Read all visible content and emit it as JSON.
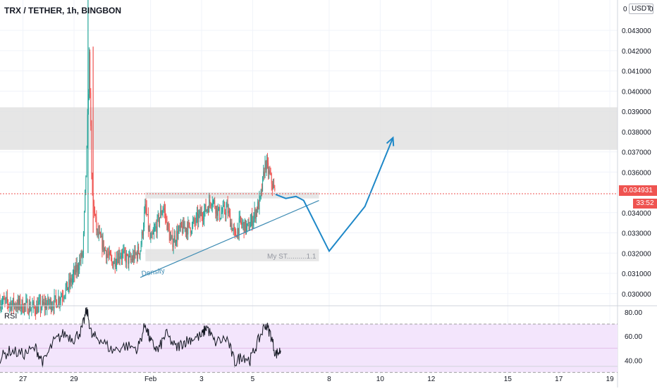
{
  "header": {
    "title": "TRX / TETHER, 1h, BINGBON"
  },
  "price_axis": {
    "currency": "USDT",
    "currency_prefix": "0",
    "currency_suffix": "0",
    "last_price": "0.034931",
    "countdown": "33:52"
  },
  "rsi": {
    "label": "RSI"
  },
  "colors": {
    "up": "#26a69a",
    "down": "#ef5350",
    "zone": "#e0e0e0",
    "projection": "#1e88c8",
    "trendline": "#3d8bb3",
    "rsi_line": "#131722",
    "rsi_band": "#f3e5fc",
    "rsi_band_border": "#9e9e9e",
    "price_line": "#ef5350"
  },
  "chart_data": {
    "type": "candlestick",
    "title": "TRX / TETHER, 1h, BINGBON",
    "ylim": [
      0.0294,
      0.0445
    ],
    "y_ticks": [
      "0.043000",
      "0.042000",
      "0.041000",
      "0.040000",
      "0.039000",
      "0.038000",
      "0.037000",
      "0.036000",
      "0.034000",
      "0.033000",
      "0.032000",
      "0.031000",
      "0.030000"
    ],
    "y_tick_values": [
      0.043,
      0.042,
      0.041,
      0.04,
      0.039,
      0.038,
      0.037,
      0.036,
      0.034,
      0.033,
      0.032,
      0.031,
      0.03
    ],
    "x_ticks": [
      "27",
      "29",
      "Feb",
      "3",
      "5",
      "8",
      "10",
      "12",
      "15",
      "17",
      "19"
    ],
    "x_tick_days": [
      27,
      29,
      32,
      34,
      36,
      39,
      41,
      43,
      46,
      48,
      50
    ],
    "xlim_days": [
      26.1,
      50.3
    ],
    "last_price": 0.034931,
    "price_path": [
      [
        26.1,
        0.0296
      ],
      [
        27.5,
        0.0293
      ],
      [
        28.3,
        0.0296
      ],
      [
        28.8,
        0.0304
      ],
      [
        29.1,
        0.0312
      ],
      [
        29.35,
        0.032
      ],
      [
        29.5,
        0.037
      ],
      [
        29.6,
        0.042
      ],
      [
        29.7,
        0.035
      ],
      [
        29.9,
        0.033
      ],
      [
        30.2,
        0.0322
      ],
      [
        30.5,
        0.0315
      ],
      [
        30.8,
        0.032
      ],
      [
        31.2,
        0.0316
      ],
      [
        31.6,
        0.0322
      ],
      [
        31.8,
        0.0343
      ],
      [
        32.0,
        0.0325
      ],
      [
        32.3,
        0.0336
      ],
      [
        32.5,
        0.0343
      ],
      [
        32.8,
        0.0325
      ],
      [
        33.2,
        0.0332
      ],
      [
        33.6,
        0.0333
      ],
      [
        33.9,
        0.0338
      ],
      [
        34.2,
        0.0342
      ],
      [
        34.4,
        0.0347
      ],
      [
        34.7,
        0.0339
      ],
      [
        35.0,
        0.0342
      ],
      [
        35.3,
        0.0328
      ],
      [
        35.5,
        0.0335
      ],
      [
        35.8,
        0.0332
      ],
      [
        36.1,
        0.034
      ],
      [
        36.3,
        0.0346
      ],
      [
        36.5,
        0.0365
      ],
      [
        36.7,
        0.0357
      ],
      [
        36.9,
        0.0348
      ]
    ],
    "zones": [
      {
        "y": [
          0.0371,
          0.0392
        ]
      },
      {
        "y": [
          0.0347,
          0.035
        ],
        "x": [
          31.8,
          38.6
        ]
      },
      {
        "y": [
          0.0316,
          0.0322
        ],
        "x": [
          31.8,
          38.6
        ],
        "label": "My ST..........1.1"
      }
    ],
    "trendline": {
      "x": [
        31.6,
        38.6
      ],
      "y": [
        0.0308,
        0.0346
      ],
      "label": "Density"
    },
    "projection": [
      [
        36.9,
        0.0349
      ],
      [
        37.3,
        0.0347
      ],
      [
        37.7,
        0.0348
      ],
      [
        38.0,
        0.0346
      ],
      [
        39.0,
        0.0321
      ],
      [
        40.4,
        0.0343
      ],
      [
        41.5,
        0.0377
      ]
    ],
    "rsi": {
      "ylim": [
        28,
        84
      ],
      "y_ticks": [
        "80.00",
        "60.00",
        "40.00"
      ],
      "y_tick_values": [
        80,
        60,
        40
      ],
      "bands": [
        30,
        70
      ],
      "path": [
        [
          26.1,
          42
        ],
        [
          26.5,
          48
        ],
        [
          27.0,
          45
        ],
        [
          27.5,
          50
        ],
        [
          27.8,
          38
        ],
        [
          28.2,
          55
        ],
        [
          28.6,
          62
        ],
        [
          29.0,
          58
        ],
        [
          29.3,
          65
        ],
        [
          29.5,
          82
        ],
        [
          29.7,
          60
        ],
        [
          30.0,
          58
        ],
        [
          30.5,
          48
        ],
        [
          31.0,
          52
        ],
        [
          31.5,
          50
        ],
        [
          31.8,
          70
        ],
        [
          32.0,
          55
        ],
        [
          32.3,
          48
        ],
        [
          32.6,
          62
        ],
        [
          33.0,
          50
        ],
        [
          33.3,
          55
        ],
        [
          33.6,
          58
        ],
        [
          34.0,
          60
        ],
        [
          34.2,
          68
        ],
        [
          34.5,
          55
        ],
        [
          35.0,
          58
        ],
        [
          35.3,
          38
        ],
        [
          35.6,
          44
        ],
        [
          35.9,
          40
        ],
        [
          36.2,
          55
        ],
        [
          36.5,
          70
        ],
        [
          36.7,
          62
        ],
        [
          36.9,
          45
        ],
        [
          37.1,
          48
        ]
      ]
    }
  }
}
